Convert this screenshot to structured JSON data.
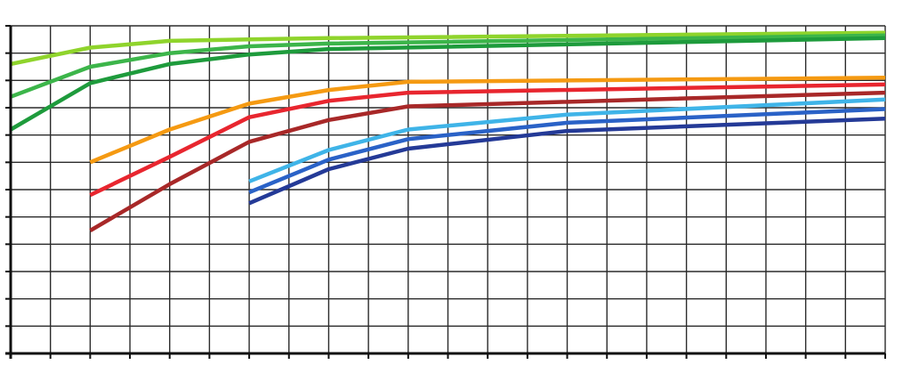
{
  "chart_data": {
    "type": "line",
    "title": "",
    "xlabel": "",
    "ylabel": "",
    "grid": true,
    "legend": "none",
    "xlim": [
      0,
      22
    ],
    "ylim": [
      0,
      12
    ],
    "x_grid_step": 1,
    "y_grid_step": 1,
    "series": [
      {
        "color": "#8fd42c",
        "x": [
          0,
          2,
          4,
          6,
          8,
          22
        ],
        "values": [
          10.6,
          11.2,
          11.45,
          11.5,
          11.55,
          11.75
        ]
      },
      {
        "color": "#3cb54a",
        "x": [
          0,
          2,
          4,
          6,
          8,
          22
        ],
        "values": [
          9.4,
          10.5,
          11.0,
          11.25,
          11.35,
          11.65
        ]
      },
      {
        "color": "#1e9b3c",
        "x": [
          0,
          2,
          4,
          6,
          8,
          22
        ],
        "values": [
          8.2,
          9.9,
          10.6,
          10.95,
          11.15,
          11.55
        ]
      },
      {
        "color": "#f59a12",
        "x": [
          2,
          4,
          6,
          8,
          10,
          22
        ],
        "values": [
          7.0,
          8.2,
          9.15,
          9.65,
          9.95,
          10.1
        ]
      },
      {
        "color": "#e8262f",
        "x": [
          2,
          4,
          6,
          8,
          10,
          22
        ],
        "values": [
          5.8,
          7.2,
          8.65,
          9.25,
          9.55,
          9.85
        ]
      },
      {
        "color": "#a82828",
        "x": [
          2,
          4,
          6,
          8,
          10,
          22
        ],
        "values": [
          4.5,
          6.2,
          7.75,
          8.55,
          9.05,
          9.55
        ]
      },
      {
        "color": "#3fb4e8",
        "x": [
          6,
          8,
          10,
          14,
          22
        ],
        "values": [
          6.3,
          7.45,
          8.2,
          8.75,
          9.3
        ]
      },
      {
        "color": "#2a62c7",
        "x": [
          6,
          8,
          10,
          14,
          22
        ],
        "values": [
          5.9,
          7.1,
          7.85,
          8.45,
          8.95
        ]
      },
      {
        "color": "#243a97",
        "x": [
          6,
          8,
          10,
          14,
          22
        ],
        "values": [
          5.5,
          6.75,
          7.5,
          8.15,
          8.6
        ]
      }
    ]
  }
}
